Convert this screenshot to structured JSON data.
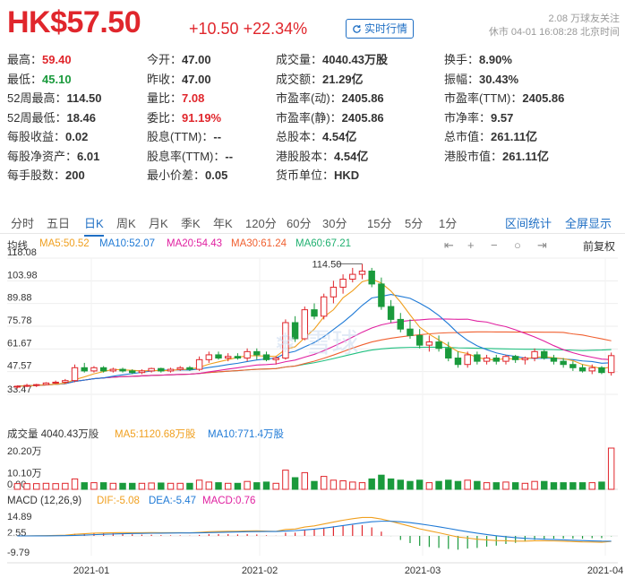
{
  "header": {
    "price": "HK$57.50",
    "change": "+10.50",
    "change_pct": "+22.34%",
    "realtime_btn": "实时行情",
    "followers": "2.08 万球友关注",
    "status": "休市 04-01 16:08:28 北京时间"
  },
  "quote_rows": [
    [
      {
        "l": "最高：",
        "v": "59.40",
        "c": "red"
      },
      {
        "l": "今开：",
        "v": "47.00",
        "c": "n"
      },
      {
        "l": "成交量：",
        "v": "4040.43万股",
        "c": "n"
      },
      {
        "l": "换手：",
        "v": "8.90%",
        "c": "n"
      }
    ],
    [
      {
        "l": "最低：",
        "v": "45.10",
        "c": "green"
      },
      {
        "l": "昨收：",
        "v": "47.00",
        "c": "n"
      },
      {
        "l": "成交额：",
        "v": "21.29亿",
        "c": "n"
      },
      {
        "l": "振幅：",
        "v": "30.43%",
        "c": "n"
      }
    ],
    [
      {
        "l": "52周最高：",
        "v": "114.50",
        "c": "n"
      },
      {
        "l": "量比：",
        "v": "7.08",
        "c": "red"
      },
      {
        "l": "市盈率(动)：",
        "v": "2405.86",
        "c": "n"
      },
      {
        "l": "市盈率(TTM)：",
        "v": "2405.86",
        "c": "n"
      }
    ],
    [
      {
        "l": "52周最低：",
        "v": "18.46",
        "c": "n"
      },
      {
        "l": "委比：",
        "v": "91.19%",
        "c": "red"
      },
      {
        "l": "市盈率(静)：",
        "v": "2405.86",
        "c": "n"
      },
      {
        "l": "市净率：",
        "v": "9.57",
        "c": "n"
      }
    ],
    [
      {
        "l": "每股收益：",
        "v": "0.02",
        "c": "n"
      },
      {
        "l": "股息(TTM)：",
        "v": "--",
        "c": "n"
      },
      {
        "l": "总股本：",
        "v": "4.54亿",
        "c": "n"
      },
      {
        "l": "总市值：",
        "v": "261.11亿",
        "c": "n"
      }
    ],
    [
      {
        "l": "每股净资产：",
        "v": "6.01",
        "c": "n"
      },
      {
        "l": "股息率(TTM)：",
        "v": "--",
        "c": "n"
      },
      {
        "l": "港股股本：",
        "v": "4.54亿",
        "c": "n"
      },
      {
        "l": "港股市值：",
        "v": "261.11亿",
        "c": "n"
      }
    ],
    [
      {
        "l": "每手股数：",
        "v": "200",
        "c": "n"
      },
      {
        "l": "最小价差：",
        "v": "0.05",
        "c": "n"
      },
      {
        "l": "货币单位：",
        "v": "HKD",
        "c": "n"
      },
      null
    ]
  ],
  "tabs": [
    "分时",
    "五日",
    "日K",
    "周K",
    "月K",
    "季K",
    "年K",
    "120分",
    "60分",
    "30分",
    "15分",
    "5分",
    "1分"
  ],
  "active_tab": "日K",
  "tab_links": {
    "interval_stats": "区间统计",
    "fullscreen": "全屏显示"
  },
  "price_legend": {
    "avg": "均线",
    "ma5": "MA5:50.52",
    "ma10": "MA10:52.07",
    "ma20": "MA20:54.43",
    "ma30": "MA30:61.24",
    "ma60": "MA60:67.21",
    "adjust": "前复权"
  },
  "vol_legend": {
    "label": "成交量 4040.43万股",
    "ma5": "MA5:1120.68万股",
    "ma10": "MA10:771.4万股"
  },
  "macd_legend": {
    "label": "MACD (12,26,9)",
    "dif": "DIF:-5.08",
    "dea": "DEA:-5.47",
    "macd": "MACD:0.76"
  },
  "colors": {
    "up": "#e0262c",
    "down": "#1a9a3c",
    "ma5": "#f0a020",
    "ma10": "#1f7ad6",
    "ma20": "#e020a0",
    "ma30": "#f06030",
    "ma60": "#20c080",
    "accent": "#1f6fc4"
  },
  "chart_data": {
    "type": "candlestick",
    "y_ticks": [
      "118.08",
      "103.98",
      "89.88",
      "75.78",
      "61.67",
      "47.57",
      "33.47"
    ],
    "y_range": [
      33.47,
      118.08
    ],
    "max_label": "114.50",
    "vol_ticks": [
      "20.20万",
      "10.10万",
      "0.00"
    ],
    "macd_ticks": [
      "14.89",
      "2.55",
      "-9.79"
    ],
    "x_labels": [
      "2021-01",
      "2021-02",
      "2021-03",
      "2021-04"
    ],
    "ohlc": [
      [
        38,
        39,
        37,
        38.5
      ],
      [
        38.5,
        40,
        38,
        39
      ],
      [
        39,
        40,
        38,
        39.5
      ],
      [
        39.5,
        41,
        39,
        40.5
      ],
      [
        40.5,
        42,
        40,
        41
      ],
      [
        41,
        43,
        40,
        42
      ],
      [
        42,
        52,
        41,
        50
      ],
      [
        50,
        53,
        47,
        48
      ],
      [
        48,
        51,
        47,
        50
      ],
      [
        50,
        51,
        47,
        48
      ],
      [
        48,
        50,
        47,
        49
      ],
      [
        49,
        50,
        47,
        48
      ],
      [
        48,
        49,
        46,
        47
      ],
      [
        47,
        49,
        46,
        48
      ],
      [
        48,
        50,
        47,
        49.5
      ],
      [
        49.5,
        50,
        47,
        48
      ],
      [
        48,
        50,
        47,
        49
      ],
      [
        49,
        51,
        48,
        50
      ],
      [
        50,
        51,
        48,
        49
      ],
      [
        49,
        57,
        48,
        55
      ],
      [
        55,
        60,
        53,
        58
      ],
      [
        58,
        60,
        55,
        56
      ],
      [
        56,
        59,
        54,
        57
      ],
      [
        57,
        59,
        55,
        56
      ],
      [
        56,
        62,
        54,
        60
      ],
      [
        60,
        62,
        55,
        58
      ],
      [
        58,
        60,
        54,
        55
      ],
      [
        55,
        57,
        52,
        56
      ],
      [
        56,
        80,
        55,
        78
      ],
      [
        78,
        82,
        66,
        68
      ],
      [
        68,
        88,
        67,
        86
      ],
      [
        86,
        90,
        80,
        82
      ],
      [
        82,
        96,
        80,
        94
      ],
      [
        94,
        104,
        90,
        100
      ],
      [
        100,
        108,
        96,
        105
      ],
      [
        105,
        112,
        103,
        108
      ],
      [
        108,
        114.5,
        105,
        110
      ],
      [
        110,
        112,
        100,
        102
      ],
      [
        102,
        106,
        86,
        88
      ],
      [
        88,
        92,
        78,
        80
      ],
      [
        80,
        84,
        72,
        74
      ],
      [
        74,
        80,
        68,
        70
      ],
      [
        70,
        74,
        62,
        64
      ],
      [
        64,
        70,
        60,
        66
      ],
      [
        66,
        70,
        60,
        62
      ],
      [
        62,
        66,
        54,
        56
      ],
      [
        56,
        60,
        50,
        52
      ],
      [
        52,
        60,
        50,
        58
      ],
      [
        58,
        60,
        52,
        54
      ],
      [
        54,
        58,
        52,
        56
      ],
      [
        56,
        58,
        52,
        54
      ],
      [
        54,
        58,
        52,
        57
      ],
      [
        57,
        58,
        53,
        55
      ],
      [
        55,
        57,
        52,
        56
      ],
      [
        56,
        62,
        54,
        60
      ],
      [
        60,
        61,
        55,
        56
      ],
      [
        56,
        58,
        52,
        54
      ],
      [
        54,
        56,
        50,
        52
      ],
      [
        52,
        54,
        48,
        50
      ],
      [
        50,
        52,
        47,
        48
      ],
      [
        48,
        52,
        46,
        50
      ],
      [
        50,
        51,
        46,
        47
      ],
      [
        47,
        59.4,
        45.1,
        57.5
      ]
    ]
  }
}
